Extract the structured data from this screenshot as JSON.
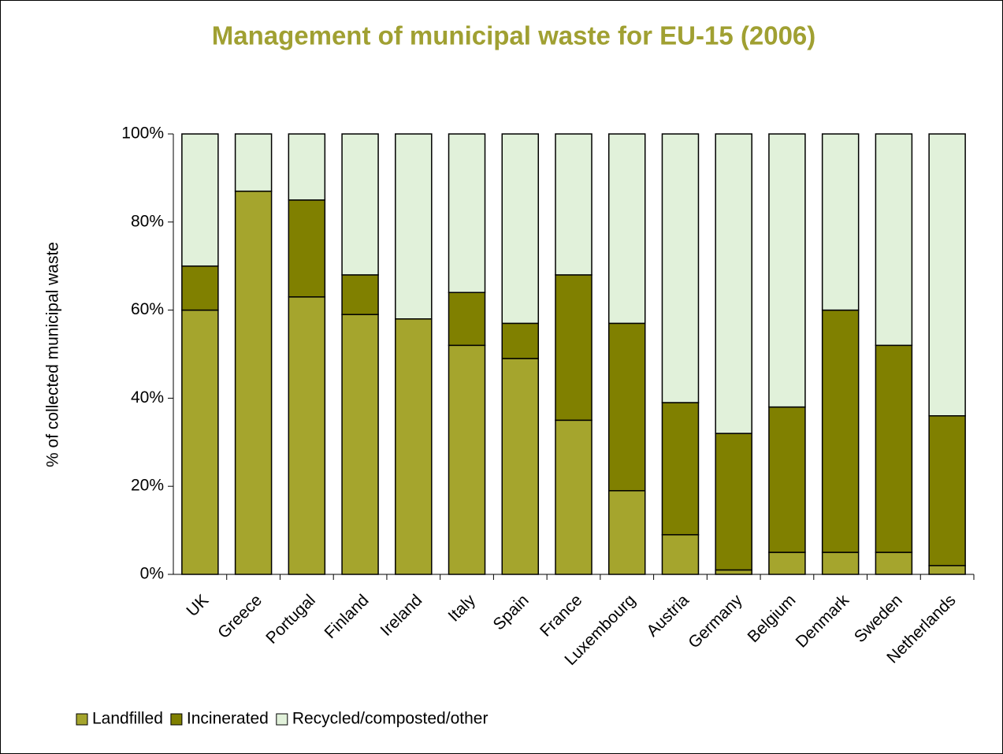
{
  "chart_data": {
    "type": "stacked_bar",
    "title": "Management of municipal waste for EU-15 (2006)",
    "y_label": "% of collected municipal waste",
    "categories": [
      "UK",
      "Greece",
      "Portugal",
      "Finland",
      "Ireland",
      "Italy",
      "Spain",
      "France",
      "Luxembourg",
      "Austria",
      "Germany",
      "Belgium",
      "Denmark",
      "Sweden",
      "Netherlands"
    ],
    "series": [
      {
        "name": "Landfilled",
        "color": "#a5a52d",
        "values": [
          60,
          87,
          63,
          59,
          58,
          52,
          49,
          35,
          19,
          9,
          1,
          5,
          5,
          5,
          2
        ]
      },
      {
        "name": "Incinerated",
        "color": "#808000",
        "values": [
          10,
          0,
          22,
          9,
          0,
          12,
          8,
          33,
          38,
          30,
          31,
          33,
          55,
          47,
          34
        ]
      },
      {
        "name": "Recycled/composted/other",
        "color": "#e1f1da",
        "values": [
          30,
          13,
          15,
          32,
          42,
          36,
          43,
          32,
          43,
          61,
          68,
          62,
          40,
          48,
          64
        ]
      }
    ],
    "ylim": [
      0,
      100
    ],
    "yticks": [
      {
        "value": 0,
        "label": "0%"
      },
      {
        "value": 20,
        "label": "20%"
      },
      {
        "value": 40,
        "label": "40%"
      },
      {
        "value": 60,
        "label": "60%"
      },
      {
        "value": 80,
        "label": "80%"
      },
      {
        "value": 100,
        "label": "100%"
      }
    ],
    "legend": "bottom-left"
  }
}
